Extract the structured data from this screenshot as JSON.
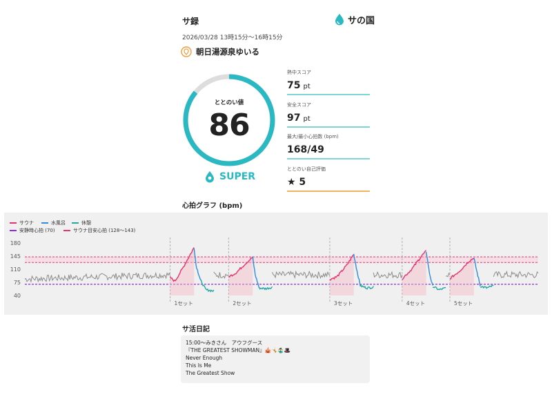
{
  "header": {
    "title": "サ録",
    "brand": "サの国"
  },
  "datetime": "2026/03/28 13時15分〜16時15分",
  "facility": "朝日湯源泉ゆいる",
  "gauge": {
    "label": "ととのい値",
    "value": "86",
    "fraction": 0.86,
    "rank": "SUPER",
    "color": "#2ab8c2"
  },
  "metrics": [
    {
      "label": "熱中スコア",
      "value": "75",
      "unit": "pt",
      "color": "#7fd4da"
    },
    {
      "label": "安全スコア",
      "value": "97",
      "unit": "pt",
      "color": "#7fd4da"
    },
    {
      "label": "最大/最小心拍数 (bpm)",
      "value": "168/49",
      "unit": "",
      "color": "#7fd4da"
    },
    {
      "label": "ととのい自己評価",
      "value": "★ 5",
      "unit": "",
      "color": "#f2b35e"
    }
  ],
  "graph": {
    "title": "心拍グラフ (bpm)",
    "legend": {
      "sauna": "サウナ",
      "water": "水風呂",
      "rest": "休憩",
      "resting_hr": "安静時心拍 (70)",
      "sauna_target": "サウナ目安心拍 (128〜143)"
    },
    "colors": {
      "sauna": "#e8306f",
      "water": "#2f8be0",
      "rest": "#22a7a4",
      "baseline": "#8a8a8a",
      "resting": "#8a2be2",
      "target": "#e8306f"
    },
    "set_labels": [
      "1セット",
      "2セット",
      "3セット",
      "4セット",
      "5セット"
    ]
  },
  "chart_data": {
    "type": "line",
    "ylim": [
      40,
      180
    ],
    "yticks": [
      180,
      145,
      110,
      75,
      40
    ],
    "resting_hr": 70,
    "target_range": [
      128,
      143
    ],
    "sets": [
      {
        "label": "1セット",
        "start": 0.283,
        "sauna": [
          [
            0.0,
            88
          ],
          [
            0.2,
            78
          ],
          [
            0.5,
            110
          ],
          [
            0.8,
            145
          ],
          [
            1.0,
            168
          ]
        ],
        "water": [
          [
            0.0,
            168
          ],
          [
            0.3,
            120
          ],
          [
            1.0,
            80
          ]
        ],
        "rest": [
          [
            0.0,
            80
          ],
          [
            0.4,
            55
          ],
          [
            1.0,
            52
          ]
        ]
      },
      {
        "label": "2セット",
        "start": 0.397,
        "sauna": [
          [
            0.0,
            90
          ],
          [
            0.3,
            100
          ],
          [
            0.7,
            125
          ],
          [
            1.0,
            142
          ]
        ],
        "water": [
          [
            0.0,
            142
          ],
          [
            0.4,
            95
          ],
          [
            1.0,
            60
          ]
        ],
        "rest": [
          [
            0.0,
            60
          ],
          [
            0.5,
            58
          ],
          [
            1.0,
            62
          ]
        ]
      },
      {
        "label": "3セット",
        "start": 0.594,
        "sauna": [
          [
            0.0,
            83
          ],
          [
            0.3,
            90
          ],
          [
            0.7,
            120
          ],
          [
            1.0,
            150
          ]
        ],
        "water": [
          [
            0.0,
            150
          ],
          [
            0.5,
            105
          ],
          [
            1.0,
            66
          ]
        ],
        "rest": [
          [
            0.0,
            66
          ],
          [
            0.5,
            60
          ],
          [
            1.0,
            62
          ]
        ]
      },
      {
        "label": "4セット",
        "start": 0.735,
        "sauna": [
          [
            0.0,
            85
          ],
          [
            0.4,
            110
          ],
          [
            0.8,
            145
          ],
          [
            1.0,
            158
          ]
        ],
        "water": [
          [
            0.0,
            158
          ],
          [
            0.5,
            100
          ],
          [
            1.0,
            64
          ]
        ],
        "rest": [
          [
            0.0,
            64
          ],
          [
            0.5,
            55
          ],
          [
            1.0,
            60
          ]
        ]
      },
      {
        "label": "5セット",
        "start": 0.828,
        "sauna": [
          [
            0.0,
            85
          ],
          [
            0.4,
            105
          ],
          [
            0.8,
            132
          ],
          [
            1.0,
            140
          ]
        ],
        "water": [
          [
            0.0,
            140
          ],
          [
            0.5,
            100
          ],
          [
            1.0,
            64
          ]
        ],
        "rest": [
          [
            0.0,
            64
          ],
          [
            0.5,
            60
          ],
          [
            1.0,
            66
          ]
        ]
      }
    ]
  },
  "diary": {
    "title": "サ活日記",
    "lines": [
      "15:00〜みきさん　アウフグース",
      "『THE GREATEST SHOWMAN』🎪🤸🤹‍♂️🎩",
      "Never Enough",
      "This Is Me",
      "The Greatest Show"
    ]
  }
}
